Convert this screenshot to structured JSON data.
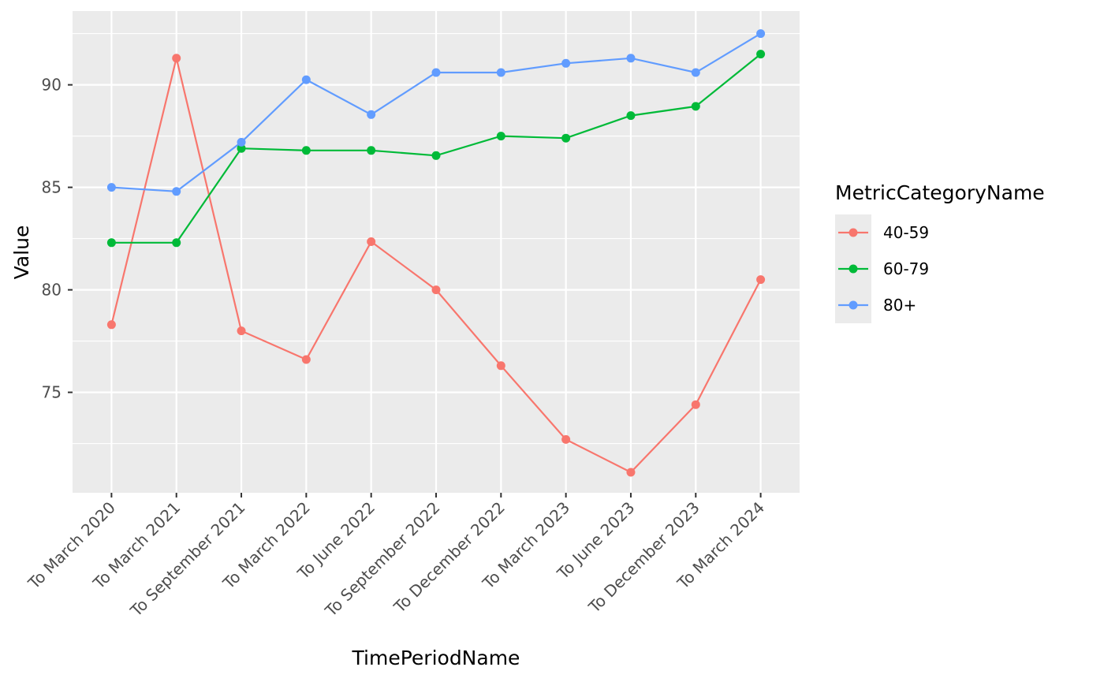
{
  "chart_data": {
    "type": "line",
    "xlabel": "TimePeriodName",
    "ylabel": "Value",
    "categories": [
      "To March 2020",
      "To March 2021",
      "To September 2021",
      "To March 2022",
      "To June 2022",
      "To September 2022",
      "To December 2022",
      "To March 2023",
      "To June 2023",
      "To December 2023",
      "To March 2024"
    ],
    "yticks": [
      75,
      80,
      85,
      90
    ],
    "ylim": [
      70.1,
      93.6
    ],
    "grid": true,
    "legend": {
      "title": "MetricCategoryName",
      "position": "right"
    },
    "series": [
      {
        "name": "40-59",
        "color": "#F8766D",
        "values": [
          78.3,
          91.3,
          78.0,
          76.6,
          82.35,
          80.0,
          76.3,
          72.7,
          71.1,
          74.4,
          80.5
        ]
      },
      {
        "name": "60-79",
        "color": "#00BA38",
        "values": [
          82.3,
          82.3,
          86.9,
          86.8,
          86.8,
          86.55,
          87.5,
          87.4,
          88.5,
          88.95,
          91.5
        ]
      },
      {
        "name": "80+",
        "color": "#619CFF",
        "values": [
          85.0,
          84.8,
          87.2,
          90.25,
          88.55,
          90.6,
          90.6,
          91.05,
          91.3,
          90.6,
          92.5
        ]
      }
    ]
  }
}
